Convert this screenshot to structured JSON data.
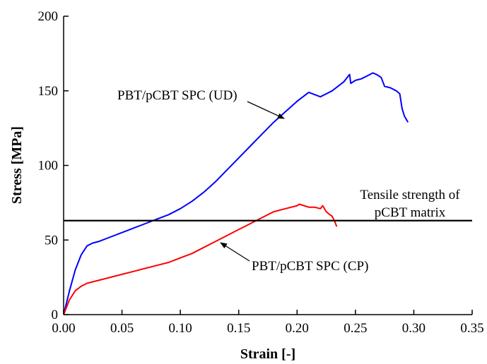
{
  "chart_data": {
    "type": "line",
    "title": "",
    "xlabel": "Strain [-]",
    "ylabel": "Stress [MPa]",
    "xlim": [
      0.0,
      0.35
    ],
    "ylim": [
      0,
      200
    ],
    "x_ticks": [
      "0.00",
      "0.05",
      "0.10",
      "0.15",
      "0.20",
      "0.25",
      "0.30",
      "0.35"
    ],
    "y_ticks": [
      "0",
      "50",
      "100",
      "150",
      "200"
    ],
    "grid": false,
    "legend": "none",
    "series": [
      {
        "name": "PBT/pCBT SPC (UD)",
        "color": "#0000ff",
        "x": [
          0.0,
          0.005,
          0.01,
          0.015,
          0.02,
          0.025,
          0.03,
          0.04,
          0.05,
          0.06,
          0.07,
          0.08,
          0.09,
          0.1,
          0.11,
          0.12,
          0.13,
          0.14,
          0.15,
          0.16,
          0.17,
          0.18,
          0.19,
          0.2,
          0.21,
          0.22,
          0.225,
          0.23,
          0.24,
          0.245,
          0.246,
          0.25,
          0.255,
          0.26,
          0.265,
          0.268,
          0.272,
          0.275,
          0.28,
          0.285,
          0.288,
          0.29,
          0.292,
          0.295
        ],
        "y": [
          0,
          16,
          30,
          40,
          46,
          48,
          49,
          52,
          55,
          58,
          61,
          64,
          67,
          71,
          76,
          82,
          89,
          97,
          105,
          113,
          121,
          129,
          136,
          143,
          149,
          146,
          148,
          150,
          156,
          161,
          155,
          157,
          158,
          160,
          162,
          161,
          159,
          153,
          152,
          150,
          148,
          138,
          133,
          129
        ]
      },
      {
        "name": "PBT/pCBT SPC (CP)",
        "color": "#ff0000",
        "x": [
          0.0,
          0.005,
          0.01,
          0.015,
          0.02,
          0.03,
          0.04,
          0.05,
          0.06,
          0.07,
          0.08,
          0.09,
          0.1,
          0.11,
          0.12,
          0.13,
          0.14,
          0.15,
          0.16,
          0.17,
          0.18,
          0.19,
          0.2,
          0.202,
          0.21,
          0.215,
          0.22,
          0.222,
          0.225,
          0.228,
          0.23,
          0.232,
          0.234
        ],
        "y": [
          0,
          10,
          16,
          19,
          21,
          23,
          25,
          27,
          29,
          31,
          33,
          35,
          38,
          41,
          45,
          49,
          53,
          57,
          61,
          65,
          69,
          71,
          73,
          74,
          72,
          72,
          71,
          73,
          69,
          67,
          66,
          63,
          59
        ]
      }
    ],
    "reference_line": {
      "y": 63,
      "color": "#000000"
    },
    "annotations": [
      "PBT/pCBT SPC (UD)",
      "PBT/pCBT SPC (CP)",
      "Tensile strength of",
      "pCBT matrix"
    ]
  }
}
